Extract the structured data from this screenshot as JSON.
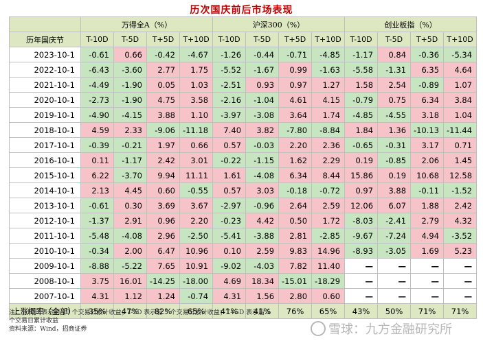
{
  "title": "历次国庆前后市场表现",
  "groups": [
    "万得全A（%）",
    "沪深300（%）",
    "创业板指（%）"
  ],
  "date_header": "历年国庆节",
  "subheaders": [
    "T-10D",
    "T-5D",
    "T+5D",
    "T+10D"
  ],
  "rows": [
    {
      "date": "2023-10-1",
      "values": [
        "-0.61",
        "0.66",
        "-0.42",
        "-4.67",
        "-1.26",
        "-0.44",
        "-0.71",
        "-4.85",
        "-1.17",
        "0.84",
        "-0.36",
        "-5.34"
      ]
    },
    {
      "date": "2022-10-1",
      "values": [
        "-6.43",
        "-3.60",
        "2.77",
        "1.75",
        "-5.52",
        "-1.67",
        "0.99",
        "-1.63",
        "-5.58",
        "-1.31",
        "6.35",
        "4.64"
      ]
    },
    {
      "date": "2021-10-1",
      "values": [
        "-4.49",
        "-1.90",
        "0.05",
        "1.03",
        "-2.51",
        "0.93",
        "0.97",
        "1.27",
        "1.58",
        "2.54",
        "-0.89",
        "1.07"
      ]
    },
    {
      "date": "2020-10-1",
      "values": [
        "-2.73",
        "-1.90",
        "4.75",
        "3.58",
        "-2.16",
        "-1.04",
        "4.61",
        "4.15",
        "-0.79",
        "0.75",
        "6.34",
        "3.84"
      ]
    },
    {
      "date": "2019-10-1",
      "values": [
        "-4.90",
        "-4.15",
        "3.88",
        "1.10",
        "-3.97",
        "-3.08",
        "3.64",
        "1.74",
        "-4.85",
        "-4.55",
        "3.18",
        "1.04"
      ]
    },
    {
      "date": "2018-10-1",
      "values": [
        "4.59",
        "2.33",
        "-9.06",
        "-11.18",
        "7.40",
        "3.82",
        "-7.80",
        "-8.84",
        "1.84",
        "1.36",
        "-10.13",
        "-11.44"
      ]
    },
    {
      "date": "2017-10-1",
      "values": [
        "-0.39",
        "-0.21",
        "1.97",
        "0.66",
        "0.57",
        "-0.03",
        "2.20",
        "2.36",
        "-0.65",
        "-0.31",
        "3.17",
        "0.71"
      ]
    },
    {
      "date": "2016-10-1",
      "values": [
        "0.11",
        "-1.17",
        "2.42",
        "3.01",
        "-0.22",
        "-1.15",
        "1.62",
        "2.29",
        "0.19",
        "-0.85",
        "2.06",
        "1.45"
      ]
    },
    {
      "date": "2015-10-1",
      "values": [
        "6.22",
        "-3.70",
        "9.94",
        "11.11",
        "1.61",
        "-4.08",
        "6.34",
        "8.44",
        "15.86",
        "0.19",
        "10.68",
        "12.58"
      ]
    },
    {
      "date": "2014-10-1",
      "values": [
        "2.13",
        "4.45",
        "0.60",
        "-0.55",
        "0.57",
        "3.03",
        "-0.18",
        "-0.72",
        "0.97",
        "3.88",
        "-0.11",
        "-1.52"
      ]
    },
    {
      "date": "2013-10-1",
      "values": [
        "-0.61",
        "0.30",
        "3.69",
        "3.67",
        "-2.97",
        "-0.96",
        "2.64",
        "2.59",
        "12.06",
        "6.07",
        "1.88",
        "2.42"
      ]
    },
    {
      "date": "2012-10-1",
      "values": [
        "-1.37",
        "2.91",
        "0.96",
        "2.20",
        "-0.23",
        "4.42",
        "0.50",
        "1.72",
        "-8.03",
        "-2.41",
        "2.79",
        "4.32"
      ]
    },
    {
      "date": "2011-10-1",
      "values": [
        "-5.48",
        "-4.08",
        "2.96",
        "-2.50",
        "-5.41",
        "-3.88",
        "2.81",
        "-2.85",
        "-9.67",
        "-7.24",
        "4.94",
        "-3.52"
      ]
    },
    {
      "date": "2010-10-1",
      "values": [
        "-0.34",
        "2.00",
        "6.47",
        "10.96",
        "0.10",
        "2.59",
        "9.83",
        "14.96",
        "-8.93",
        "-3.05",
        "1.69",
        "5.23"
      ]
    },
    {
      "date": "2009-10-1",
      "values": [
        "-8.88",
        "-5.22",
        "7.65",
        "10.91",
        "-9.02",
        "-4.03",
        "7.82",
        "11.40",
        "—",
        "—",
        "—",
        "—"
      ]
    },
    {
      "date": "2008-10-1",
      "values": [
        "3.75",
        "16.01",
        "-14.25",
        "-18.00",
        "4.69",
        "18.34",
        "-15.01",
        "-18.29",
        "—",
        "—",
        "—",
        "—"
      ]
    },
    {
      "date": "2007-10-1",
      "values": [
        "4.31",
        "1.12",
        "1.24",
        "-0.74",
        "4.31",
        "1.56",
        "2.80",
        "0.60",
        "—",
        "—",
        "—",
        "—"
      ]
    }
  ],
  "footer": {
    "label": "上涨概率（全部）",
    "values": [
      "35%",
      "47%",
      "82%",
      "65%",
      "41%",
      "41%",
      "76%",
      "65%",
      "43%",
      "50%",
      "71%",
      "71%"
    ]
  },
  "notes": [
    "注：T-10D 表示前 10 个交易日累计收益；T-5D 表示前 5 个交易日累计收益；T+5D 表示后 5",
    "个交易日累计收益",
    "资料来源：Wind，招商证券"
  ],
  "watermark": "雪球：九方金融研究所",
  "colors": {
    "positive": "#f6c4c8",
    "negative": "#c7e5c1",
    "header": "#dde8c3",
    "title": "#c00000"
  }
}
